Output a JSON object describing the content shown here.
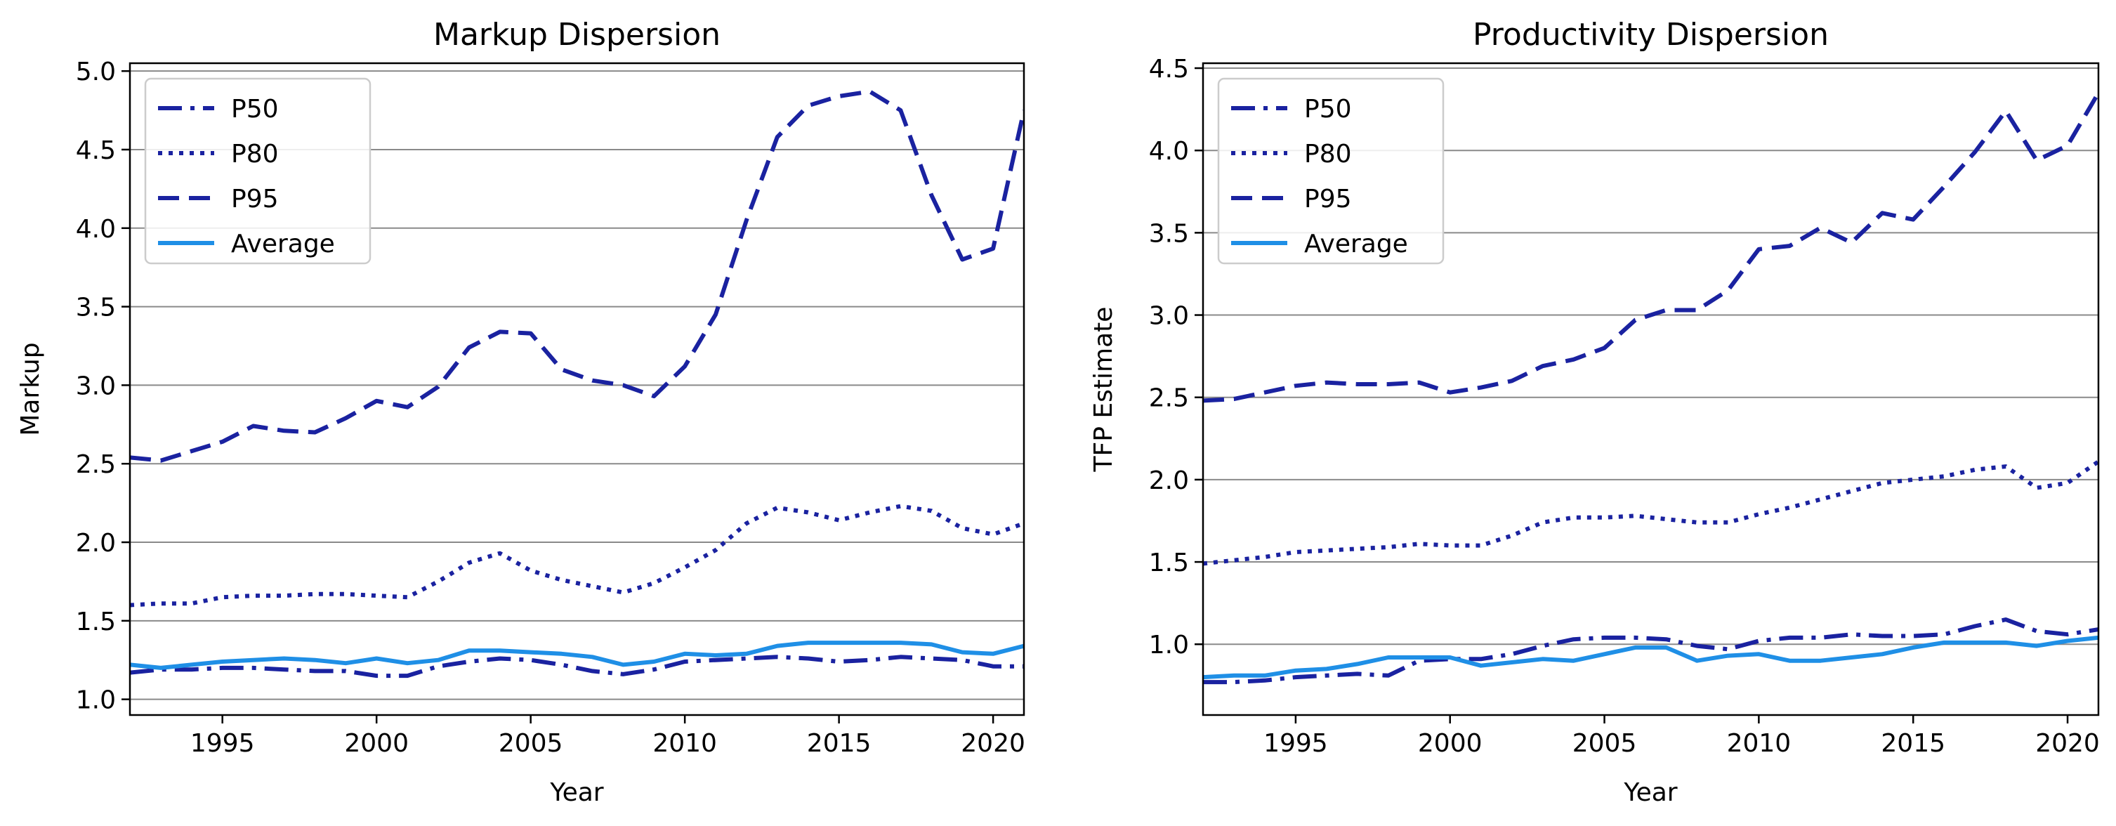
{
  "colors": {
    "dark": "#1a22a0",
    "avg": "#1f8fe6",
    "grid": "#8a8a8a",
    "frame": "#000000",
    "legend_border": "#cccccc"
  },
  "chart_data": [
    {
      "type": "line",
      "title": "Markup Dispersion",
      "xlabel": "Year",
      "ylabel": "Markup",
      "xlim": [
        1992,
        2021
      ],
      "ylim": [
        0.9,
        5.05
      ],
      "xticks": [
        1995,
        2000,
        2005,
        2010,
        2015,
        2020
      ],
      "yticks": [
        1.0,
        1.5,
        2.0,
        2.5,
        3.0,
        3.5,
        4.0,
        4.5,
        5.0
      ],
      "ytick_labels": [
        "1.0",
        "1.5",
        "2.0",
        "2.5",
        "3.0",
        "3.5",
        "4.0",
        "4.5",
        "5.0"
      ],
      "grid": "horizontal",
      "legend": "top-left",
      "x": [
        1992,
        1993,
        1994,
        1995,
        1996,
        1997,
        1998,
        1999,
        2000,
        2001,
        2002,
        2003,
        2004,
        2005,
        2006,
        2007,
        2008,
        2009,
        2010,
        2011,
        2012,
        2013,
        2014,
        2015,
        2016,
        2017,
        2018,
        2019,
        2020,
        2021
      ],
      "series": [
        {
          "name": "P50",
          "style": "dashdot",
          "color": "#1a22a0",
          "values": [
            1.17,
            1.19,
            1.19,
            1.2,
            1.2,
            1.19,
            1.18,
            1.18,
            1.15,
            1.15,
            1.21,
            1.24,
            1.26,
            1.25,
            1.22,
            1.18,
            1.16,
            1.19,
            1.24,
            1.25,
            1.26,
            1.27,
            1.26,
            1.24,
            1.25,
            1.27,
            1.26,
            1.25,
            1.21,
            1.21
          ]
        },
        {
          "name": "P80",
          "style": "dotted",
          "color": "#1a22a0",
          "values": [
            1.6,
            1.61,
            1.61,
            1.65,
            1.66,
            1.66,
            1.67,
            1.67,
            1.66,
            1.65,
            1.75,
            1.87,
            1.93,
            1.82,
            1.76,
            1.72,
            1.68,
            1.74,
            1.84,
            1.95,
            2.12,
            2.22,
            2.19,
            2.14,
            2.19,
            2.23,
            2.2,
            2.09,
            2.05,
            2.12
          ]
        },
        {
          "name": "P95",
          "style": "dashed",
          "color": "#1a22a0",
          "values": [
            2.54,
            2.52,
            2.58,
            2.64,
            2.74,
            2.71,
            2.7,
            2.79,
            2.9,
            2.86,
            2.99,
            3.24,
            3.34,
            3.33,
            3.1,
            3.03,
            3.0,
            2.93,
            3.12,
            3.45,
            4.05,
            4.58,
            4.78,
            4.84,
            4.87,
            4.75,
            4.21,
            3.8,
            3.87,
            4.75
          ]
        },
        {
          "name": "Average",
          "style": "solid",
          "color": "#1f8fe6",
          "values": [
            1.22,
            1.2,
            1.22,
            1.24,
            1.25,
            1.26,
            1.25,
            1.23,
            1.26,
            1.23,
            1.25,
            1.31,
            1.31,
            1.3,
            1.29,
            1.27,
            1.22,
            1.24,
            1.29,
            1.28,
            1.29,
            1.34,
            1.36,
            1.36,
            1.36,
            1.36,
            1.35,
            1.3,
            1.29,
            1.34
          ]
        }
      ]
    },
    {
      "type": "line",
      "title": "Productivity Dispersion",
      "xlabel": "Year",
      "ylabel": "TFP Estimate",
      "xlim": [
        1992,
        2021
      ],
      "ylim": [
        0.57,
        4.53
      ],
      "xticks": [
        1995,
        2000,
        2005,
        2010,
        2015,
        2020
      ],
      "yticks": [
        1.0,
        1.5,
        2.0,
        2.5,
        3.0,
        3.5,
        4.0,
        4.5
      ],
      "ytick_labels": [
        "1.0",
        "1.5",
        "2.0",
        "2.5",
        "3.0",
        "3.5",
        "4.0",
        "4.5"
      ],
      "grid": "horizontal",
      "legend": "top-left",
      "x": [
        1992,
        1993,
        1994,
        1995,
        1996,
        1997,
        1998,
        1999,
        2000,
        2001,
        2002,
        2003,
        2004,
        2005,
        2006,
        2007,
        2008,
        2009,
        2010,
        2011,
        2012,
        2013,
        2014,
        2015,
        2016,
        2017,
        2018,
        2019,
        2020,
        2021
      ],
      "series": [
        {
          "name": "P50",
          "style": "dashdot",
          "color": "#1a22a0",
          "values": [
            0.77,
            0.77,
            0.78,
            0.8,
            0.81,
            0.82,
            0.81,
            0.9,
            0.91,
            0.91,
            0.94,
            0.99,
            1.03,
            1.04,
            1.04,
            1.03,
            0.99,
            0.97,
            1.02,
            1.04,
            1.04,
            1.06,
            1.05,
            1.05,
            1.06,
            1.11,
            1.15,
            1.08,
            1.06,
            1.09
          ]
        },
        {
          "name": "P80",
          "style": "dotted",
          "color": "#1a22a0",
          "values": [
            1.49,
            1.51,
            1.53,
            1.56,
            1.57,
            1.58,
            1.59,
            1.61,
            1.6,
            1.6,
            1.66,
            1.74,
            1.77,
            1.77,
            1.78,
            1.76,
            1.74,
            1.74,
            1.79,
            1.83,
            1.88,
            1.93,
            1.98,
            2.0,
            2.02,
            2.06,
            2.08,
            1.95,
            1.98,
            2.11
          ]
        },
        {
          "name": "P95",
          "style": "dashed",
          "color": "#1a22a0",
          "values": [
            2.48,
            2.49,
            2.53,
            2.57,
            2.59,
            2.58,
            2.58,
            2.59,
            2.53,
            2.56,
            2.6,
            2.69,
            2.73,
            2.8,
            2.97,
            3.03,
            3.03,
            3.15,
            3.4,
            3.42,
            3.53,
            3.44,
            3.62,
            3.58,
            3.78,
            3.99,
            4.24,
            3.94,
            4.03,
            4.35
          ]
        },
        {
          "name": "Average",
          "style": "solid",
          "color": "#1f8fe6",
          "values": [
            0.8,
            0.81,
            0.81,
            0.84,
            0.85,
            0.88,
            0.92,
            0.92,
            0.92,
            0.87,
            0.89,
            0.91,
            0.9,
            0.94,
            0.98,
            0.98,
            0.9,
            0.93,
            0.94,
            0.9,
            0.9,
            0.92,
            0.94,
            0.98,
            1.01,
            1.01,
            1.01,
            0.99,
            1.02,
            1.04
          ]
        }
      ]
    }
  ]
}
